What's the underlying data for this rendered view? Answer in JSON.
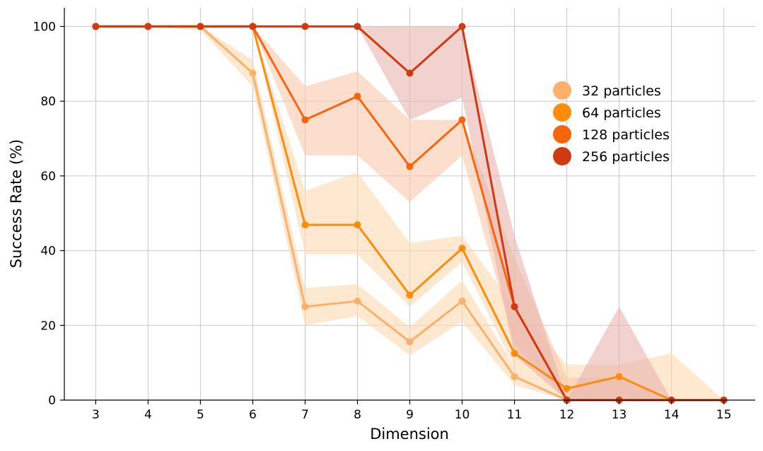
{
  "chart_data": {
    "type": "line",
    "title": "",
    "xlabel": "Dimension",
    "ylabel": "Success Rate (%)",
    "x": [
      3,
      4,
      5,
      6,
      7,
      8,
      9,
      10,
      11,
      12,
      13,
      14,
      15
    ],
    "xticks": [
      3,
      4,
      5,
      6,
      7,
      8,
      9,
      10,
      11,
      12,
      13,
      14,
      15
    ],
    "xlim": [
      2.4,
      15.6
    ],
    "ylim": [
      0,
      105
    ],
    "yticks": [
      0,
      20,
      40,
      60,
      80,
      100
    ],
    "grid": true,
    "legend_position": "upper-right",
    "series": [
      {
        "name": "32 particles",
        "color": "#fdb06a",
        "band_color": "#fdd8b0",
        "values": [
          100,
          100,
          100,
          87.5,
          25,
          26.5,
          15.6,
          26.5,
          6.3,
          0,
          0,
          0,
          0
        ],
        "lower": [
          100,
          100,
          99,
          84,
          20,
          22.5,
          12,
          21,
          4,
          0,
          0,
          0,
          0
        ],
        "upper": [
          100,
          100,
          100,
          91,
          30,
          31,
          19.5,
          32,
          9,
          0,
          0,
          0,
          0
        ]
      },
      {
        "name": "64 particles",
        "color": "#fd8b0c",
        "band_color": "#fdd9b0",
        "values": [
          100,
          100,
          100,
          100,
          46.9,
          46.9,
          28.1,
          40.6,
          12.5,
          3.1,
          6.3,
          0,
          0
        ],
        "lower": [
          100,
          100,
          100,
          100,
          39,
          39,
          25,
          37,
          9,
          0,
          0,
          0,
          0
        ],
        "upper": [
          100,
          100,
          100,
          100,
          56,
          61,
          42,
          44,
          25,
          9.5,
          9.5,
          12.5,
          0
        ]
      },
      {
        "name": "128 particles",
        "color": "#f9650d",
        "band_color": "#f9c8a8",
        "values": [
          100,
          100,
          100,
          100,
          75,
          81.3,
          62.5,
          75,
          25,
          0,
          0,
          0,
          0
        ],
        "lower": [
          100,
          100,
          100,
          100,
          65.5,
          65.5,
          53,
          65.5,
          15,
          0,
          0,
          0,
          0
        ],
        "upper": [
          100,
          100,
          100,
          100,
          84,
          88,
          75,
          75,
          38,
          6,
          6,
          0,
          0
        ]
      },
      {
        "name": "256 particles",
        "color": "#cf3a10",
        "band_color": "#e8b4ae",
        "values": [
          100,
          100,
          100,
          100,
          100,
          100,
          87.5,
          100,
          25,
          0,
          0,
          0,
          0
        ],
        "lower": [
          100,
          100,
          100,
          100,
          100,
          100,
          75,
          81,
          12,
          0,
          0,
          0,
          0
        ],
        "upper": [
          100,
          100,
          100,
          100,
          100,
          100,
          100,
          100,
          44,
          0,
          25,
          0,
          0
        ]
      }
    ]
  }
}
